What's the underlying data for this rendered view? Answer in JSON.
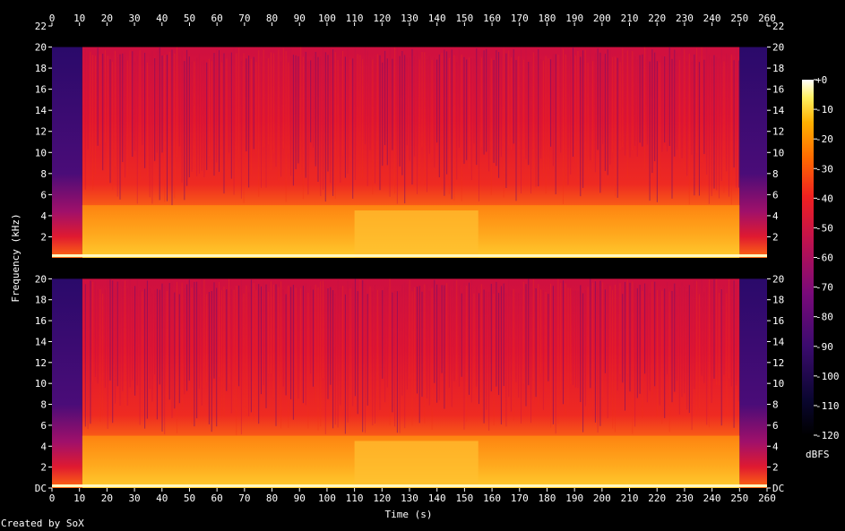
{
  "credit": "Created by SoX",
  "chart_data": {
    "type": "heatmap",
    "title": "",
    "xlabel": "Time (s)",
    "ylabel": "Frequency (kHz)",
    "xlim": [
      0,
      260
    ],
    "ylim_khz": [
      0,
      22
    ],
    "x_ticks": [
      0,
      10,
      20,
      30,
      40,
      50,
      60,
      70,
      80,
      90,
      100,
      110,
      120,
      130,
      140,
      150,
      160,
      170,
      180,
      190,
      200,
      210,
      220,
      230,
      240,
      250,
      260
    ],
    "y_ticks_top_channel": [
      "2",
      "4",
      "6",
      "8",
      "10",
      "12",
      "14",
      "16",
      "18",
      "20",
      "22"
    ],
    "y_ticks_bottom_channel": [
      "DC",
      "2",
      "4",
      "6",
      "8",
      "10",
      "12",
      "14",
      "16",
      "18",
      "20"
    ],
    "channels": [
      "channel-1",
      "channel-2"
    ],
    "colorbar": {
      "label": "dBFS",
      "range": [
        -120,
        0
      ],
      "ticks": [
        "+0",
        "-10",
        "-20",
        "-30",
        "-40",
        "-50",
        "-60",
        "-70",
        "-80",
        "-90",
        "-100",
        "-110",
        "-120"
      ]
    },
    "segments": [
      {
        "start": 0,
        "end": 11,
        "cutoff_khz": 20,
        "level": "quiet intro"
      },
      {
        "start": 11,
        "end": 110,
        "cutoff_khz": 20,
        "level": "loud"
      },
      {
        "start": 110,
        "end": 155,
        "cutoff_khz": 20,
        "level": "loud, dense low band"
      },
      {
        "start": 155,
        "end": 250,
        "cutoff_khz": 20,
        "level": "loud"
      },
      {
        "start": 250,
        "end": 260,
        "cutoff_khz": 20,
        "level": "fade out"
      }
    ]
  }
}
